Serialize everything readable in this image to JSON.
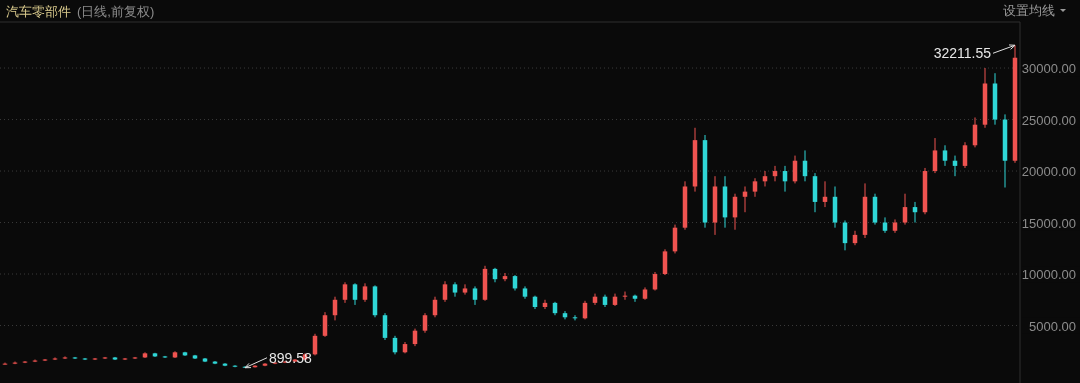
{
  "chart_data": {
    "type": "candlestick",
    "title": "汽车零部件",
    "subtitle": "(日线,前复权)",
    "annotations": [
      "设置均线",
      "899.58",
      "32211.55"
    ],
    "categories": [
      null,
      null,
      null,
      null,
      null,
      null,
      null,
      null,
      null,
      null,
      null,
      null,
      null,
      null,
      null,
      null,
      null,
      null,
      null,
      null,
      null,
      null,
      null,
      null,
      null,
      null,
      null,
      null,
      null,
      null,
      null,
      null,
      null,
      null,
      null,
      null,
      null,
      null,
      null,
      null,
      null,
      null,
      null,
      null,
      null,
      null,
      null,
      null,
      null,
      null,
      null,
      null,
      null,
      null,
      null,
      null,
      null,
      null,
      null,
      null,
      null,
      null,
      null,
      null,
      null,
      null,
      null,
      null,
      null,
      null,
      null,
      null,
      null,
      null,
      null,
      null,
      null,
      null,
      null,
      null,
      null,
      null,
      null,
      null,
      null,
      null,
      null,
      null,
      null,
      null,
      null,
      null,
      null,
      null,
      null,
      null,
      null,
      null,
      null,
      null,
      null,
      null
    ],
    "ohlc": [
      [
        1250,
        1400,
        1200,
        1300
      ],
      [
        1300,
        1500,
        1250,
        1400
      ],
      [
        1400,
        1550,
        1350,
        1500
      ],
      [
        1500,
        1700,
        1450,
        1600
      ],
      [
        1600,
        1750,
        1550,
        1700
      ],
      [
        1700,
        1900,
        1650,
        1800
      ],
      [
        1800,
        2000,
        1750,
        1900
      ],
      [
        1900,
        1950,
        1750,
        1800
      ],
      [
        1800,
        1850,
        1650,
        1700
      ],
      [
        1700,
        1850,
        1650,
        1800
      ],
      [
        1800,
        1950,
        1750,
        1900
      ],
      [
        1900,
        1950,
        1650,
        1700
      ],
      [
        1700,
        1850,
        1650,
        1800
      ],
      [
        1800,
        1950,
        1750,
        1900
      ],
      [
        1900,
        2400,
        1850,
        2300
      ],
      [
        2300,
        2350,
        1950,
        2000
      ],
      [
        2000,
        2050,
        1850,
        1900
      ],
      [
        1900,
        2500,
        1850,
        2400
      ],
      [
        2400,
        2450,
        2050,
        2100
      ],
      [
        2100,
        2150,
        1750,
        1800
      ],
      [
        1800,
        1850,
        1450,
        1500
      ],
      [
        1500,
        1550,
        1250,
        1300
      ],
      [
        1300,
        1350,
        1050,
        1100
      ],
      [
        1100,
        1150,
        950,
        1000
      ],
      [
        1000,
        1050,
        899.58,
        950
      ],
      [
        950,
        1150,
        920,
        1100
      ],
      [
        1100,
        1350,
        1050,
        1300
      ],
      [
        1300,
        1450,
        1250,
        1400
      ],
      [
        1400,
        1550,
        1350,
        1500
      ],
      [
        1500,
        1750,
        1450,
        1700
      ],
      [
        1700,
        2300,
        1650,
        2200
      ],
      [
        2200,
        4200,
        2100,
        4000
      ],
      [
        4000,
        6300,
        3900,
        6000
      ],
      [
        6000,
        7800,
        5500,
        7500
      ],
      [
        7500,
        9200,
        7200,
        9000
      ],
      [
        9000,
        9100,
        7000,
        7500
      ],
      [
        7500,
        9100,
        7300,
        8800
      ],
      [
        8800,
        8900,
        5800,
        6000
      ],
      [
        6000,
        6200,
        3600,
        3800
      ],
      [
        3800,
        4000,
        2200,
        2400
      ],
      [
        2400,
        3400,
        2300,
        3200
      ],
      [
        3200,
        4700,
        3000,
        4500
      ],
      [
        4500,
        6200,
        4300,
        6000
      ],
      [
        6000,
        7800,
        5800,
        7500
      ],
      [
        7500,
        9300,
        7300,
        9000
      ],
      [
        9000,
        9200,
        7800,
        8200
      ],
      [
        8200,
        9000,
        8000,
        8600
      ],
      [
        8600,
        8800,
        7000,
        7500
      ],
      [
        7500,
        10800,
        7400,
        10500
      ],
      [
        10500,
        10600,
        9200,
        9500
      ],
      [
        9500,
        10100,
        9300,
        9800
      ],
      [
        9800,
        9900,
        8400,
        8600
      ],
      [
        8600,
        8800,
        7600,
        7800
      ],
      [
        7800,
        7900,
        6600,
        6800
      ],
      [
        6800,
        7500,
        6600,
        7200
      ],
      [
        7200,
        7300,
        6000,
        6200
      ],
      [
        6200,
        6400,
        5600,
        5800
      ],
      [
        5800,
        6000,
        5500,
        5700
      ],
      [
        5700,
        7400,
        5600,
        7200
      ],
      [
        7200,
        8100,
        7000,
        7800
      ],
      [
        7800,
        8000,
        6800,
        7000
      ],
      [
        7000,
        8100,
        6900,
        7800
      ],
      [
        7800,
        8300,
        7500,
        7900
      ],
      [
        7900,
        8000,
        7300,
        7600
      ],
      [
        7600,
        8700,
        7500,
        8500
      ],
      [
        8500,
        10200,
        8400,
        10000
      ],
      [
        10000,
        12400,
        9900,
        12200
      ],
      [
        12200,
        14800,
        12000,
        14500
      ],
      [
        14500,
        19000,
        14300,
        18500
      ],
      [
        18500,
        24200,
        18000,
        23000
      ],
      [
        23000,
        23500,
        14500,
        15000
      ],
      [
        15000,
        19500,
        13800,
        18500
      ],
      [
        18500,
        19500,
        14500,
        15500
      ],
      [
        15500,
        17800,
        14300,
        17500
      ],
      [
        17500,
        18500,
        16000,
        18000
      ],
      [
        18000,
        19300,
        17500,
        19000
      ],
      [
        19000,
        20000,
        18500,
        19500
      ],
      [
        19500,
        20500,
        19000,
        20000
      ],
      [
        20000,
        20500,
        18000,
        19000
      ],
      [
        19000,
        21500,
        18800,
        21000
      ],
      [
        21000,
        22000,
        19000,
        19500
      ],
      [
        19500,
        19800,
        16000,
        17000
      ],
      [
        17000,
        19000,
        16500,
        17500
      ],
      [
        17500,
        18500,
        14500,
        15000
      ],
      [
        15000,
        15200,
        12300,
        13000
      ],
      [
        13000,
        14200,
        12800,
        13800
      ],
      [
        13800,
        18800,
        13500,
        17500
      ],
      [
        17500,
        17800,
        14800,
        15000
      ],
      [
        15000,
        15500,
        14000,
        14200
      ],
      [
        14200,
        15300,
        14000,
        15000
      ],
      [
        15000,
        17800,
        14800,
        16500
      ],
      [
        16500,
        17000,
        15000,
        16000
      ],
      [
        16000,
        20300,
        15800,
        20000
      ],
      [
        20000,
        23200,
        19800,
        22000
      ],
      [
        22000,
        22500,
        20500,
        21000
      ],
      [
        21000,
        21500,
        19500,
        20500
      ],
      [
        20500,
        22800,
        20300,
        22500
      ],
      [
        22500,
        25200,
        22300,
        24500
      ],
      [
        24500,
        30000,
        24200,
        28500
      ],
      [
        28500,
        29500,
        24500,
        25000
      ],
      [
        25000,
        25500,
        18400,
        21000
      ],
      [
        21000,
        32211.55,
        20800,
        31000
      ]
    ],
    "ylim": [
      -580,
      34470
    ],
    "yticks": [
      {
        "value": 5000,
        "label": "5000.00"
      },
      {
        "value": 10000,
        "label": "10000.00"
      },
      {
        "value": 15000,
        "label": "15000.00"
      },
      {
        "value": 20000,
        "label": "20000.00"
      },
      {
        "value": 25000,
        "label": "25000.00"
      },
      {
        "value": 30000,
        "label": "30000.00"
      }
    ],
    "grid": "y",
    "tick_labels": "y"
  }
}
